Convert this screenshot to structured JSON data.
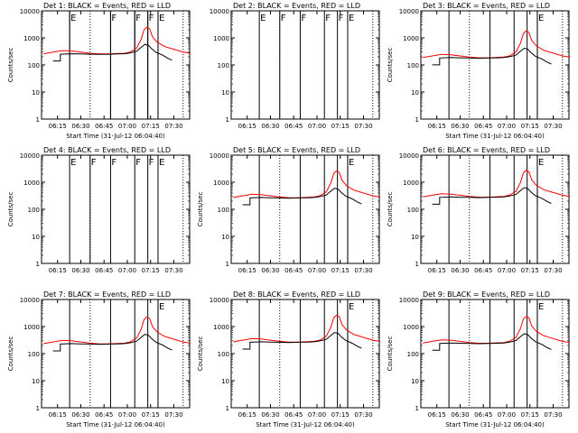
{
  "chart_data": [
    {
      "type": "line",
      "title": "Det 1: BLACK = Events, RED = LLD",
      "ylabel": "Counts/sec",
      "xlabel": "Start Time (31-Jul-12 06:04:40)",
      "has_data": true,
      "flags": [
        {
          "label": "E",
          "t": 6.38
        },
        {
          "label": "F",
          "t": 6.82
        },
        {
          "label": "F",
          "t": 7.08
        },
        {
          "label": "F",
          "t": 7.22
        },
        {
          "label": "E",
          "t": 7.33
        }
      ],
      "series": []
    },
    {
      "type": "line",
      "title": "Det 2: BLACK = Events, RED = LLD",
      "ylabel": "",
      "xlabel": "",
      "has_data": false,
      "flags": [
        {
          "label": "E",
          "t": 6.38
        },
        {
          "label": "F",
          "t": 6.6
        },
        {
          "label": "F",
          "t": 6.82
        },
        {
          "label": "F",
          "t": 7.08
        },
        {
          "label": "F",
          "t": 7.22
        },
        {
          "label": "E",
          "t": 7.33
        }
      ],
      "series": []
    },
    {
      "type": "line",
      "title": "Det 3: BLACK = Events, RED = LLD",
      "ylabel": "Counts/sec",
      "xlabel": "Start Time (31-Jul-12 06:04:40)",
      "has_data": true,
      "flags": [
        {
          "label": "E",
          "t": 7.33
        }
      ],
      "series": []
    },
    {
      "type": "line",
      "title": "Det 4: BLACK = Events, RED = LLD",
      "ylabel": "Counts/sec",
      "xlabel": "",
      "has_data": false,
      "flags": [
        {
          "label": "E",
          "t": 6.38
        },
        {
          "label": "F",
          "t": 6.6
        },
        {
          "label": "F",
          "t": 6.82
        },
        {
          "label": "F",
          "t": 7.08
        },
        {
          "label": "F",
          "t": 7.22
        },
        {
          "label": "E",
          "t": 7.33
        }
      ],
      "series": []
    },
    {
      "type": "line",
      "title": "Det 5: BLACK = Events, RED = LLD",
      "ylabel": "Counts/sec",
      "xlabel": "",
      "has_data": true,
      "flags": [
        {
          "label": "E",
          "t": 7.33
        }
      ],
      "series": []
    },
    {
      "type": "line",
      "title": "Det 6: BLACK = Events, RED = LLD",
      "ylabel": "Counts/sec",
      "xlabel": "",
      "has_data": true,
      "flags": [
        {
          "label": "E",
          "t": 7.33
        }
      ],
      "series": []
    },
    {
      "type": "line",
      "title": "Det 7: BLACK = Events, RED = LLD",
      "ylabel": "Counts/sec",
      "xlabel": "Start Time (31-Jul-12 06:04:40)",
      "has_data": true,
      "flags": [
        {
          "label": "E",
          "t": 7.33
        }
      ],
      "series": []
    },
    {
      "type": "line",
      "title": "Det 8: BLACK = Events, RED = LLD",
      "ylabel": "Counts/sec",
      "xlabel": "Start Time (31-Jul-12 06:04:40)",
      "has_data": true,
      "flags": [
        {
          "label": "E",
          "t": 7.33
        }
      ],
      "series": []
    },
    {
      "type": "line",
      "title": "Det 9: BLACK = Events, RED = LLD",
      "ylabel": "Counts/sec",
      "xlabel": "Start Time (31-Jul-12 06:04:40)",
      "has_data": true,
      "flags": [
        {
          "label": "E",
          "t": 7.33
        }
      ],
      "series": []
    }
  ],
  "shared_axes": {
    "x_ticks": [
      "06:15",
      "06:30",
      "06:45",
      "07:00",
      "07:15",
      "07:30"
    ],
    "x_tick_hours": [
      6.25,
      6.5,
      6.75,
      7.0,
      7.25,
      7.5
    ],
    "x_range_hours": [
      6.078,
      7.67
    ],
    "y_scale": "log",
    "y_range": [
      1,
      10000
    ],
    "y_ticks": [
      "1",
      "10",
      "100",
      "1000",
      "10000"
    ],
    "dotted_boundary_hours": [
      6.6,
      7.6
    ],
    "colors": {
      "events": "#000000",
      "lld": "#ff0000",
      "frame": "#000000"
    }
  },
  "profiles": {
    "lld": [
      [
        6.1,
        260
      ],
      [
        6.2,
        300
      ],
      [
        6.3,
        340
      ],
      [
        6.4,
        330
      ],
      [
        6.5,
        300
      ],
      [
        6.6,
        270
      ],
      [
        6.7,
        255
      ],
      [
        6.8,
        255
      ],
      [
        6.9,
        265
      ],
      [
        6.97,
        270
      ],
      [
        7.03,
        300
      ],
      [
        7.1,
        420
      ],
      [
        7.15,
        900
      ],
      [
        7.18,
        2000
      ],
      [
        7.21,
        2500
      ],
      [
        7.24,
        2200
      ],
      [
        7.27,
        1100
      ],
      [
        7.32,
        700
      ],
      [
        7.4,
        480
      ],
      [
        7.5,
        380
      ],
      [
        7.6,
        300
      ],
      [
        7.68,
        270
      ]
    ],
    "events": [
      [
        6.2,
        140
      ],
      [
        6.28,
        140
      ],
      [
        6.28,
        250
      ],
      [
        6.4,
        260
      ],
      [
        6.5,
        255
      ],
      [
        6.6,
        250
      ],
      [
        6.7,
        245
      ],
      [
        6.8,
        250
      ],
      [
        6.9,
        255
      ],
      [
        6.97,
        260
      ],
      [
        7.03,
        280
      ],
      [
        7.1,
        320
      ],
      [
        7.15,
        450
      ],
      [
        7.19,
        580
      ],
      [
        7.23,
        520
      ],
      [
        7.26,
        400
      ],
      [
        7.31,
        290
      ],
      [
        7.38,
        230
      ],
      [
        7.43,
        180
      ],
      [
        7.48,
        150
      ]
    ],
    "vertical_segments_hours": [
      6.38,
      6.82,
      7.08,
      7.22,
      7.33
    ]
  }
}
